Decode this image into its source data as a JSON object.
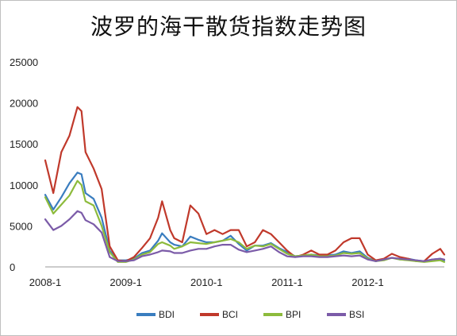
{
  "chart_data": {
    "type": "line",
    "title": "波罗的海干散货指数走势图",
    "xlabel": "",
    "ylabel": "",
    "ylim": [
      0,
      25000
    ],
    "yticks": [
      0,
      5000,
      10000,
      15000,
      20000,
      25000
    ],
    "xticks": [
      {
        "label": "2008-1",
        "value": 2008.0
      },
      {
        "label": "2009-1",
        "value": 2009.0
      },
      {
        "label": "2010-1",
        "value": 2010.0
      },
      {
        "label": "2011-1",
        "value": 2011.0
      },
      {
        "label": "2012-1",
        "value": 2012.0
      }
    ],
    "xlim": [
      2008.0,
      2012.95
    ],
    "grid": false,
    "legend_position": "bottom",
    "x": [
      2008.0,
      2008.1,
      2008.2,
      2008.3,
      2008.4,
      2008.45,
      2008.5,
      2008.6,
      2008.7,
      2008.8,
      2008.9,
      2009.0,
      2009.1,
      2009.2,
      2009.3,
      2009.4,
      2009.45,
      2009.55,
      2009.6,
      2009.7,
      2009.8,
      2009.9,
      2010.0,
      2010.1,
      2010.2,
      2010.3,
      2010.4,
      2010.5,
      2010.6,
      2010.7,
      2010.8,
      2010.9,
      2011.0,
      2011.1,
      2011.2,
      2011.3,
      2011.4,
      2011.5,
      2011.6,
      2011.7,
      2011.8,
      2011.9,
      2012.0,
      2012.1,
      2012.2,
      2012.3,
      2012.4,
      2012.5,
      2012.6,
      2012.7,
      2012.8,
      2012.9,
      2012.95
    ],
    "series": [
      {
        "name": "BDI",
        "color": "#3a7dbf",
        "values": [
          8800,
          7000,
          8500,
          10200,
          11500,
          11300,
          9000,
          8300,
          6000,
          2000,
          800,
          800,
          1000,
          1700,
          2000,
          3200,
          4100,
          3000,
          2700,
          2500,
          3700,
          3300,
          3000,
          3000,
          3200,
          3800,
          2800,
          2000,
          2600,
          2600,
          2900,
          2300,
          1800,
          1300,
          1400,
          1500,
          1400,
          1400,
          1500,
          1900,
          1700,
          1900,
          1100,
          700,
          900,
          1100,
          900,
          1000,
          800,
          700,
          900,
          1000,
          800
        ]
      },
      {
        "name": "BCI",
        "color": "#c0392b",
        "values": [
          13000,
          9000,
          14000,
          16000,
          19500,
          19000,
          14000,
          12000,
          9500,
          2500,
          800,
          700,
          1200,
          2300,
          3500,
          6000,
          8000,
          4500,
          3500,
          3000,
          7500,
          6500,
          4000,
          4500,
          4000,
          4500,
          4500,
          2500,
          3000,
          4500,
          4000,
          3000,
          2000,
          1200,
          1500,
          2000,
          1500,
          1500,
          2000,
          3000,
          3500,
          3500,
          1500,
          800,
          1000,
          1600,
          1200,
          1000,
          700,
          700,
          1600,
          2200,
          1500
        ]
      },
      {
        "name": "BPI",
        "color": "#8dbb3c",
        "values": [
          8500,
          6500,
          7600,
          8700,
          10500,
          10000,
          8000,
          7500,
          5000,
          1800,
          600,
          600,
          900,
          1500,
          1800,
          2800,
          3000,
          2600,
          2200,
          2500,
          3000,
          2900,
          2800,
          3000,
          3200,
          3400,
          3000,
          2200,
          2600,
          2500,
          2800,
          2200,
          1600,
          1300,
          1400,
          1500,
          1300,
          1300,
          1400,
          1700,
          1600,
          1700,
          1000,
          700,
          800,
          1100,
          900,
          800,
          700,
          600,
          700,
          800,
          600
        ]
      },
      {
        "name": "BSI",
        "color": "#7b5ba8",
        "values": [
          5800,
          4500,
          5000,
          5800,
          6800,
          6600,
          5700,
          5200,
          4200,
          1200,
          700,
          700,
          800,
          1300,
          1500,
          1800,
          2000,
          1900,
          1700,
          1700,
          2000,
          2200,
          2200,
          2500,
          2700,
          2700,
          2100,
          1800,
          2000,
          2200,
          2500,
          1800,
          1300,
          1200,
          1300,
          1300,
          1200,
          1200,
          1300,
          1400,
          1300,
          1400,
          900,
          700,
          900,
          1100,
          1000,
          900,
          800,
          700,
          900,
          1000,
          900
        ]
      }
    ]
  }
}
